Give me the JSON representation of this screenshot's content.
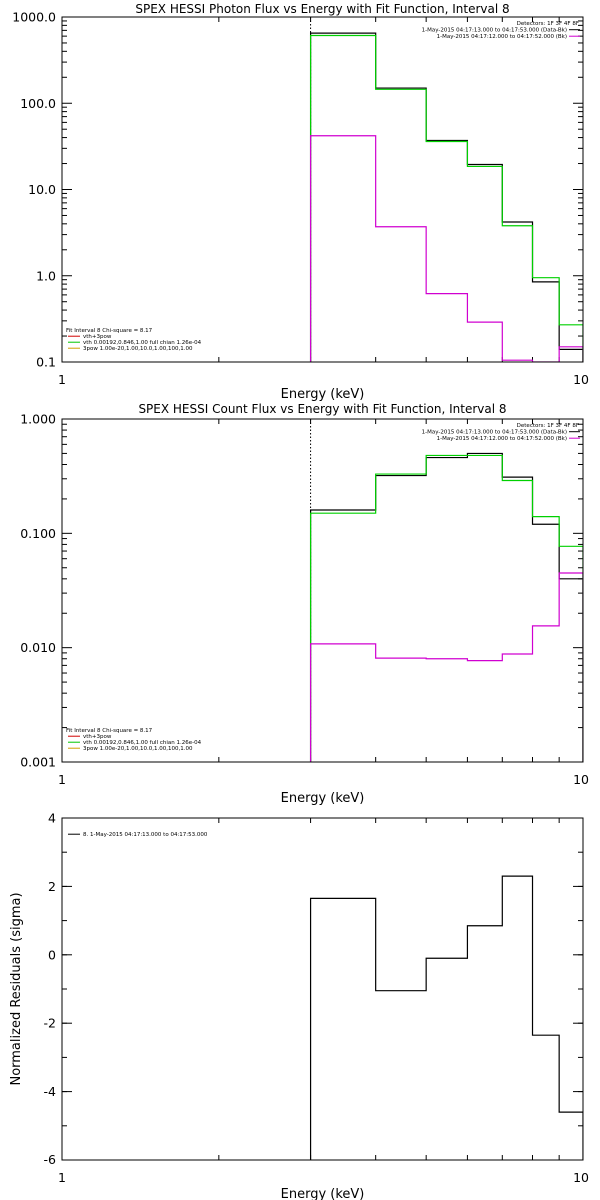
{
  "colors": {
    "data": "#000000",
    "model": "#00d000",
    "background": "#d000d0",
    "comp_vth": "#00c800",
    "comp_sum": "#d00000",
    "comp_pow": "#d0a000"
  },
  "plots": [
    {
      "id": "photon",
      "title": "SPEX HESSI Photon Flux vs Energy with Fit Function, Interval 8",
      "xlabel": "Energy (keV)",
      "ylabel": "",
      "xlim": [
        1,
        10
      ],
      "ylim": [
        0.1,
        1000
      ],
      "xlog": true,
      "ylog": true,
      "xticks": [
        {
          "v": 1,
          "label": "1"
        },
        {
          "v": 10,
          "label": "10"
        }
      ],
      "yticks": [
        {
          "v": 0.1,
          "label": "0.1"
        },
        {
          "v": 1,
          "label": "1.0"
        },
        {
          "v": 10,
          "label": "10.0"
        },
        {
          "v": 100,
          "label": "100.0"
        },
        {
          "v": 1000,
          "label": "1000.0"
        }
      ],
      "vline": 3,
      "legend_right": [
        {
          "text": "Detectors: 1F 3F 4F 8F",
          "color": ""
        },
        {
          "text": "1-May-2015 04:17:13.000 to 04:17:53.000 (Data-Bk)",
          "color": "#000000"
        },
        {
          "text": "1-May-2015 04:17:12.000 to 04:17:52.000 (Bk)",
          "color": "#d000d0"
        }
      ],
      "legend_left": [
        {
          "text": "Fit Interval 8   Chi-square = 8.17",
          "color": ""
        },
        {
          "text": "vth+3pow",
          "color": "#d00000"
        },
        {
          "text": "vth 0.00192,0.846,1.00   full chian 1.26e-04",
          "color": "#00c800"
        },
        {
          "text": "3pow 1.00e-20,1.00,10.0,1.00,100,1.00",
          "color": "#d0a000"
        }
      ]
    },
    {
      "id": "count",
      "title": "SPEX HESSI Count Flux vs Energy with Fit Function, Interval 8",
      "xlabel": "Energy (keV)",
      "ylabel": "",
      "xlim": [
        1,
        10
      ],
      "ylim": [
        0.001,
        1
      ],
      "xlog": true,
      "ylog": true,
      "xticks": [
        {
          "v": 1,
          "label": "1"
        },
        {
          "v": 10,
          "label": "10"
        }
      ],
      "yticks": [
        {
          "v": 0.001,
          "label": "0.001"
        },
        {
          "v": 0.01,
          "label": "0.010"
        },
        {
          "v": 0.1,
          "label": "0.100"
        },
        {
          "v": 1,
          "label": "1.000"
        }
      ],
      "vline": 3,
      "legend_right": [
        {
          "text": "Detectors: 1F 3F 4F 8F",
          "color": ""
        },
        {
          "text": "1-May-2015 04:17:13.000 to 04:17:53.000 (Data-Bk)",
          "color": "#000000"
        },
        {
          "text": "1-May-2015 04:17:12.000 to 04:17:52.000 (Bk)",
          "color": "#d000d0"
        }
      ],
      "legend_left": [
        {
          "text": "Fit Interval 8   Chi-square = 8.17",
          "color": ""
        },
        {
          "text": "vth+3pow",
          "color": "#d00000"
        },
        {
          "text": "vth 0.00192,0.846,1.00   full chian 1.26e-04",
          "color": "#00c800"
        },
        {
          "text": "3pow 1.00e-20,1.00,10.0,1.00,100,1.00",
          "color": "#d0a000"
        }
      ]
    },
    {
      "id": "resid",
      "title": "",
      "xlabel": "Energy (keV)",
      "ylabel": "Normalized Residuals (sigma)",
      "xlim": [
        1,
        10
      ],
      "ylim": [
        -6,
        4
      ],
      "xlog": true,
      "ylog": false,
      "xticks": [
        {
          "v": 1,
          "label": "1"
        },
        {
          "v": 10,
          "label": "10"
        }
      ],
      "yticks": [
        {
          "v": -6,
          "label": "-6"
        },
        {
          "v": -4,
          "label": "-4"
        },
        {
          "v": -2,
          "label": "-2"
        },
        {
          "v": 0,
          "label": "0"
        },
        {
          "v": 2,
          "label": "2"
        },
        {
          "v": 4,
          "label": "4"
        }
      ],
      "vline": null,
      "legend_right": [],
      "legend_left": [
        {
          "text": "8. 1-May-2015 04:17:13.000 to 04:17:53.000",
          "color": "#000000"
        }
      ]
    }
  ],
  "chart_data": [
    {
      "type": "line",
      "title": "SPEX HESSI Photon Flux vs Energy with Fit Function, Interval 8",
      "xlabel": "Energy (keV)",
      "ylabel": "",
      "xscale": "log",
      "yscale": "log",
      "xlim": [
        1,
        10
      ],
      "ylim": [
        0.1,
        1000
      ],
      "grid": false,
      "bin_edges": [
        3,
        4,
        5,
        6,
        7,
        8,
        9,
        10
      ],
      "series": [
        {
          "name": "1-May-2015 04:17:13.000 to 04:17:53.000 (Data-Bk)",
          "color": "#000000",
          "values": [
            650,
            150,
            37,
            19.5,
            4.2,
            0.85,
            0.14
          ]
        },
        {
          "name": "vth+3pow",
          "color": "#00d000",
          "values": [
            610,
            145,
            36,
            18.5,
            3.8,
            0.95,
            0.27
          ]
        },
        {
          "name": "1-May-2015 04:17:12.000 to 04:17:52.000 (Bk)",
          "color": "#d000d0",
          "values": [
            42,
            3.7,
            0.62,
            0.29,
            0.105,
            0.1,
            0.15
          ]
        }
      ]
    },
    {
      "type": "line",
      "title": "SPEX HESSI Count Flux vs Energy with Fit Function, Interval 8",
      "xlabel": "Energy (keV)",
      "ylabel": "",
      "xscale": "log",
      "yscale": "log",
      "xlim": [
        1,
        10
      ],
      "ylim": [
        0.001,
        1
      ],
      "grid": false,
      "bin_edges": [
        3,
        4,
        5,
        6,
        7,
        8,
        9,
        10
      ],
      "series": [
        {
          "name": "1-May-2015 04:17:13.000 to 04:17:53.000 (Data-Bk)",
          "color": "#000000",
          "values": [
            0.16,
            0.32,
            0.46,
            0.5,
            0.31,
            0.12,
            0.04
          ]
        },
        {
          "name": "vth+3pow",
          "color": "#00d000",
          "values": [
            0.15,
            0.33,
            0.48,
            0.48,
            0.29,
            0.14,
            0.077
          ]
        },
        {
          "name": "1-May-2015 04:17:12.000 to 04:17:52.000 (Bk)",
          "color": "#d000d0",
          "values": [
            0.0108,
            0.0081,
            0.008,
            0.0077,
            0.0088,
            0.0155,
            0.045
          ]
        }
      ]
    },
    {
      "type": "line",
      "title": "",
      "xlabel": "Energy (keV)",
      "ylabel": "Normalized Residuals (sigma)",
      "xscale": "log",
      "yscale": "linear",
      "xlim": [
        1,
        10
      ],
      "ylim": [
        -6,
        4
      ],
      "grid": false,
      "bin_edges": [
        3,
        4,
        5,
        6,
        7,
        8,
        9,
        10
      ],
      "series": [
        {
          "name": "8. 1-May-2015 04:17:13.000 to 04:17:53.000",
          "color": "#000000",
          "values": [
            1.65,
            -1.05,
            -0.1,
            0.85,
            2.3,
            -2.35,
            -4.6
          ]
        }
      ]
    }
  ]
}
